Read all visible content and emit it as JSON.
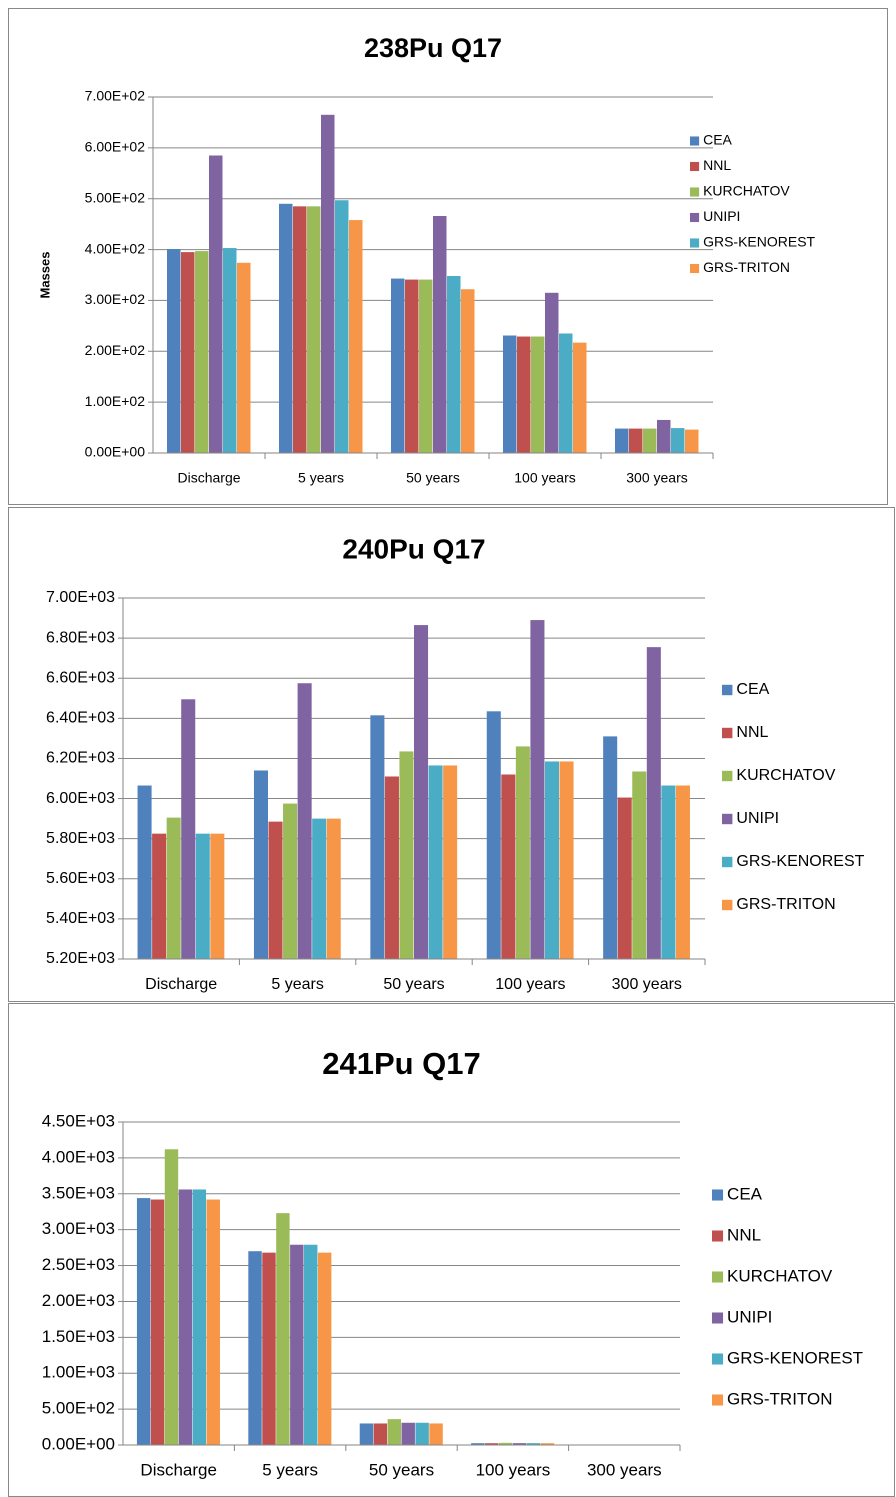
{
  "chart_data": [
    {
      "type": "bar",
      "title": "238Pu Q17",
      "y_label": "Masses",
      "categories": [
        "Discharge",
        "5 years",
        "50 years",
        "100 years",
        "300 years"
      ],
      "series": [
        {
          "name": "CEA",
          "color": "#4f81bd",
          "values": [
            401,
            490,
            343,
            231,
            48
          ]
        },
        {
          "name": "NNL",
          "color": "#c0504d",
          "values": [
            395,
            485,
            341,
            229,
            48
          ]
        },
        {
          "name": "KURCHATOV",
          "color": "#9bbb59",
          "values": [
            397,
            485,
            341,
            229,
            48
          ]
        },
        {
          "name": "UNIPI",
          "color": "#8064a2",
          "values": [
            585,
            665,
            466,
            315,
            65
          ]
        },
        {
          "name": "GRS-KENOREST",
          "color": "#4bacc6",
          "values": [
            403,
            497,
            348,
            235,
            49
          ]
        },
        {
          "name": "GRS-TRITON",
          "color": "#f79646",
          "values": [
            374,
            458,
            322,
            217,
            46
          ]
        }
      ],
      "ylim": [
        0,
        700
      ],
      "yticks": [
        {
          "value": 0,
          "label": "0.00E+00"
        },
        {
          "value": 100,
          "label": "1.00E+02"
        },
        {
          "value": 200,
          "label": "2.00E+02"
        },
        {
          "value": 300,
          "label": "3.00E+02"
        },
        {
          "value": 400,
          "label": "4.00E+02"
        },
        {
          "value": 500,
          "label": "5.00E+02"
        },
        {
          "value": 600,
          "label": "6.00E+02"
        },
        {
          "value": 700,
          "label": "7.00E+02"
        }
      ],
      "grid": true,
      "legend": "right"
    },
    {
      "type": "bar",
      "title": "240Pu Q17",
      "categories": [
        "Discharge",
        "5 years",
        "50 years",
        "100 years",
        "300 years"
      ],
      "series": [
        {
          "name": "CEA",
          "color": "#4f81bd",
          "values": [
            6065,
            6140,
            6415,
            6435,
            6310
          ]
        },
        {
          "name": "NNL",
          "color": "#c0504d",
          "values": [
            5825,
            5885,
            6110,
            6120,
            6005
          ]
        },
        {
          "name": "KURCHATOV",
          "color": "#9bbb59",
          "values": [
            5905,
            5975,
            6235,
            6260,
            6135
          ]
        },
        {
          "name": "UNIPI",
          "color": "#8064a2",
          "values": [
            6495,
            6575,
            6865,
            6890,
            6755
          ]
        },
        {
          "name": "GRS-KENOREST",
          "color": "#4bacc6",
          "values": [
            5825,
            5900,
            6165,
            6185,
            6065
          ]
        },
        {
          "name": "GRS-TRITON",
          "color": "#f79646",
          "values": [
            5825,
            5900,
            6165,
            6185,
            6065
          ]
        }
      ],
      "ylim": [
        5200,
        7000
      ],
      "yticks": [
        {
          "value": 5200,
          "label": "5.20E+03"
        },
        {
          "value": 5400,
          "label": "5.40E+03"
        },
        {
          "value": 5600,
          "label": "5.60E+03"
        },
        {
          "value": 5800,
          "label": "5.80E+03"
        },
        {
          "value": 6000,
          "label": "6.00E+03"
        },
        {
          "value": 6200,
          "label": "6.20E+03"
        },
        {
          "value": 6400,
          "label": "6.40E+03"
        },
        {
          "value": 6600,
          "label": "6.60E+03"
        },
        {
          "value": 6800,
          "label": "6.80E+03"
        },
        {
          "value": 7000,
          "label": "7.00E+03"
        }
      ],
      "grid": true,
      "legend": "right"
    },
    {
      "type": "bar",
      "title": "241Pu Q17",
      "categories": [
        "Discharge",
        "5 years",
        "50 years",
        "100 years",
        "300 years"
      ],
      "series": [
        {
          "name": "CEA",
          "color": "#4f81bd",
          "values": [
            3440,
            2700,
            300,
            25,
            0
          ]
        },
        {
          "name": "NNL",
          "color": "#c0504d",
          "values": [
            3420,
            2680,
            300,
            25,
            0
          ]
        },
        {
          "name": "KURCHATOV",
          "color": "#9bbb59",
          "values": [
            4120,
            3230,
            360,
            30,
            0
          ]
        },
        {
          "name": "UNIPI",
          "color": "#8064a2",
          "values": [
            3560,
            2790,
            310,
            26,
            0
          ]
        },
        {
          "name": "GRS-KENOREST",
          "color": "#4bacc6",
          "values": [
            3560,
            2790,
            310,
            26,
            0
          ]
        },
        {
          "name": "GRS-TRITON",
          "color": "#f79646",
          "values": [
            3420,
            2680,
            300,
            25,
            0
          ]
        }
      ],
      "ylim": [
        0,
        4500
      ],
      "yticks": [
        {
          "value": 0,
          "label": "0.00E+00"
        },
        {
          "value": 500,
          "label": "5.00E+02"
        },
        {
          "value": 1000,
          "label": "1.00E+03"
        },
        {
          "value": 1500,
          "label": "1.50E+03"
        },
        {
          "value": 2000,
          "label": "2.00E+03"
        },
        {
          "value": 2500,
          "label": "2.50E+03"
        },
        {
          "value": 3000,
          "label": "3.00E+03"
        },
        {
          "value": 3500,
          "label": "3.50E+03"
        },
        {
          "value": 4000,
          "label": "4.00E+03"
        },
        {
          "value": 4500,
          "label": "4.50E+03"
        }
      ],
      "grid": true,
      "legend": "right"
    }
  ]
}
